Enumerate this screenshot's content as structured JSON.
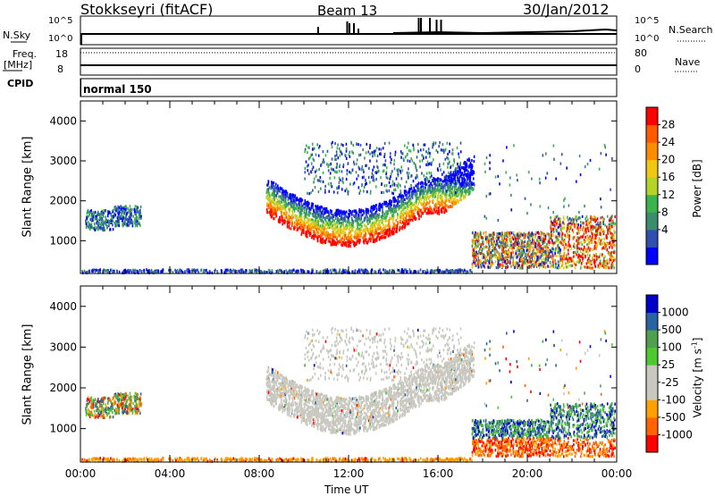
{
  "header": {
    "station": "Stokkseyri (fitACF)",
    "beam": "Beam 13",
    "date": "30/Jan/2012"
  },
  "summary": {
    "nsky_label": "N.Sky",
    "nsky_ticks": [
      "10^5",
      "10^0"
    ],
    "nsearch_label": "N.Search",
    "nsearch_ticks": [
      "10^5",
      "10^0"
    ],
    "freq_label": "Freq.",
    "freq_unit": "[MHz]",
    "freq_ticks": [
      "18",
      "8"
    ],
    "nave_label": "Nave",
    "nave_ticks": [
      "80",
      "0"
    ],
    "cpid_label": "CPID",
    "cpid_value": "normal 150"
  },
  "colors": {
    "power": [
      "#0000ff",
      "#3050b0",
      "#3c8c6e",
      "#3cb44b",
      "#b4d228",
      "#f0c814",
      "#fa8c00",
      "#ff5a00",
      "#ff0000"
    ],
    "velocity": [
      "#ff0000",
      "#ff6400",
      "#ffa000",
      "#c8c8c0",
      "#50c830",
      "#50a050",
      "#2864a0",
      "#0000c8"
    ],
    "ground_scatter": "#c8c8c0"
  },
  "chart_data": [
    {
      "type": "heatmap",
      "name": "Power",
      "ylabel": "Slant Range [km]",
      "ylim": [
        180,
        4500
      ],
      "xlim": [
        0,
        24
      ],
      "yticks": [
        1000,
        2000,
        3000,
        4000
      ],
      "colorbar": {
        "label": "Power [dB]",
        "ticks": [
          "28",
          "24",
          "20",
          "16",
          "12",
          "8",
          "4"
        ],
        "range": [
          0,
          30
        ]
      }
    },
    {
      "type": "heatmap",
      "name": "Velocity",
      "ylabel": "Slant Range [km]",
      "ylim": [
        180,
        4500
      ],
      "xlim": [
        0,
        24
      ],
      "yticks": [
        1000,
        2000,
        3000,
        4000
      ],
      "colorbar": {
        "label": "Velocity [m s",
        "label_sup": "-1",
        "label_end": "]",
        "ticks": [
          "1000",
          "500",
          "100",
          "25",
          "-25",
          "-100",
          "-500",
          "-1000"
        ]
      }
    }
  ],
  "xaxis": {
    "label": "Time UT",
    "ticks": [
      "00:00",
      "04:00",
      "08:00",
      "12:00",
      "16:00",
      "20:00",
      "00:00"
    ],
    "tick_hours": [
      0,
      4,
      8,
      12,
      16,
      20,
      24
    ]
  }
}
